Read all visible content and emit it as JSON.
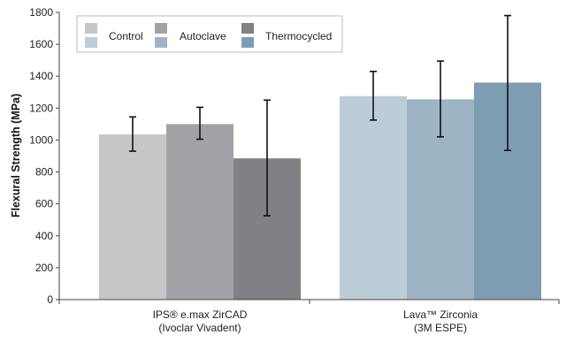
{
  "chart_data": {
    "type": "bar",
    "ylabel": "Flexural Strength  (MPa)",
    "ylim": [
      0,
      1800
    ],
    "yticks": [
      0,
      200,
      400,
      600,
      800,
      1000,
      1200,
      1400,
      1600,
      1800
    ],
    "grid": false,
    "legend_position": "top-left",
    "groups": [
      {
        "label_lines": [
          "IPS® e.max ZirCAD",
          "(Ivoclar Vivadent)"
        ],
        "bars": [
          {
            "legend": "Control",
            "value": 1035,
            "err_low": 930,
            "err_high": 1145,
            "color": "#c5c6c8"
          },
          {
            "legend": "Autoclave",
            "value": 1100,
            "err_low": 1005,
            "err_high": 1205,
            "color": "#a2a3a6"
          },
          {
            "legend": "Thermocycled",
            "value": 885,
            "err_low": 525,
            "err_high": 1250,
            "color": "#808184"
          }
        ]
      },
      {
        "label_lines": [
          "Lava™ Zirconia",
          "(3M ESPE)"
        ],
        "bars": [
          {
            "legend": "Control",
            "value": 1275,
            "err_low": 1125,
            "err_high": 1430,
            "color": "#bccdd8"
          },
          {
            "legend": "Autoclave",
            "value": 1255,
            "err_low": 1020,
            "err_high": 1495,
            "color": "#9db4c4"
          },
          {
            "legend": "Thermocycled",
            "value": 1360,
            "err_low": 935,
            "err_high": 1780,
            "color": "#7d9db3"
          }
        ]
      }
    ],
    "legend": [
      {
        "label": "Control",
        "colors": [
          "#c5c6c8",
          "#bccdd8"
        ]
      },
      {
        "label": "Autoclave",
        "colors": [
          "#a2a3a6",
          "#9db4c4"
        ]
      },
      {
        "label": "Thermocycled",
        "colors": [
          "#808184",
          "#7d9db3"
        ]
      }
    ]
  }
}
